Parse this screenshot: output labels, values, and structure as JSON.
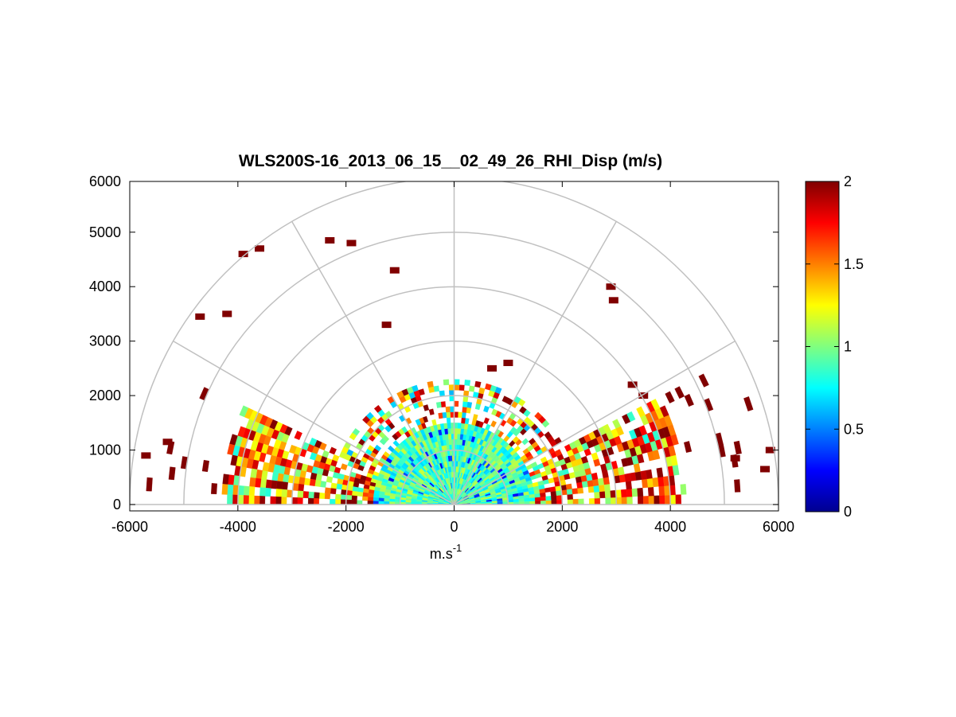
{
  "chart_data": {
    "type": "heatmap",
    "subtype": "polar-rhi",
    "title": "WLS200S-16_2013_06_15__02_49_26_RHI_Disp (m/s)",
    "xlabel": "m.s",
    "xlabel_superscript": "-1",
    "ylabel": "",
    "xlim": [
      -6000,
      6000
    ],
    "ylim": [
      0,
      6000
    ],
    "xticks": [
      "-6000",
      "-4000",
      "-2000",
      "0",
      "2000",
      "4000",
      "6000"
    ],
    "yticks": [
      "0",
      "1000",
      "2000",
      "3000",
      "4000",
      "5000",
      "6000"
    ],
    "polar_grid": {
      "ranges": [
        1000,
        2000,
        3000,
        4000,
        5000,
        6000
      ],
      "angles_deg": [
        30,
        60,
        90,
        120,
        150
      ],
      "color": "#c0c0c0"
    },
    "colorbar": {
      "colormap": "jet",
      "clim": [
        0,
        2
      ],
      "ticks": [
        "0",
        "0.5",
        "1",
        "1.5",
        "2"
      ]
    },
    "field": {
      "description_units": "m/s",
      "elevation_range_deg": [
        0,
        180
      ],
      "max_range_m": 6000,
      "near_field_max_range_m": 1500,
      "near_field_typical_value": 0.9,
      "cloud_layer_range_m": [
        1500,
        2300
      ],
      "left_side_high_values_range_m": [
        1500,
        4300
      ],
      "sparse_outliers": [
        {
          "x": -3900,
          "y": 4600,
          "value": 2
        },
        {
          "x": -3600,
          "y": 4700,
          "value": 2
        },
        {
          "x": -2300,
          "y": 4850,
          "value": 2
        },
        {
          "x": -1900,
          "y": 4800,
          "value": 2
        },
        {
          "x": -1100,
          "y": 4300,
          "value": 2
        },
        {
          "x": -1250,
          "y": 3300,
          "value": 2
        },
        {
          "x": 2900,
          "y": 4000,
          "value": 2
        },
        {
          "x": 2950,
          "y": 3750,
          "value": 2
        },
        {
          "x": -4700,
          "y": 3450,
          "value": 2
        },
        {
          "x": -4200,
          "y": 3500,
          "value": 2
        },
        {
          "x": 5200,
          "y": 850,
          "value": 2
        },
        {
          "x": 5750,
          "y": 650,
          "value": 2
        },
        {
          "x": 5850,
          "y": 1000,
          "value": 2
        },
        {
          "x": -5700,
          "y": 900,
          "value": 2
        },
        {
          "x": -5300,
          "y": 1150,
          "value": 2
        },
        {
          "x": 3500,
          "y": 2000,
          "value": 2
        },
        {
          "x": 3300,
          "y": 2200,
          "value": 2
        },
        {
          "x": 1000,
          "y": 2600,
          "value": 2
        },
        {
          "x": 700,
          "y": 2500,
          "value": 2
        }
      ]
    }
  }
}
